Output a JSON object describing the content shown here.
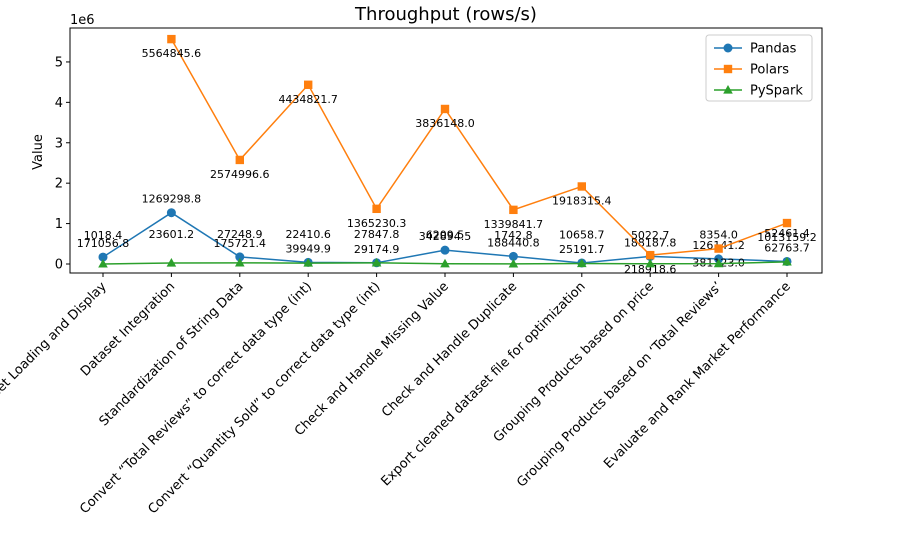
{
  "chart_data": {
    "type": "line",
    "title": "Throughput (rows/s)",
    "ylabel": "Value",
    "y_offset_label": "1e6",
    "categories": [
      "Dataset Loading and Display",
      "Dataset Integration",
      "Standardization of String Data",
      "Convert “Total Reviews” to correct data type (int)",
      "Convert “Quantity Sold” to correct data type (int)",
      "Check and Handle Missing Value",
      "Check and Handle Duplicate",
      "Export cleaned dataset file for optimization",
      "Grouping Products based on price",
      "Grouping Products based on ‘Total Reviews’",
      "Evaluate and Rank Market Performance"
    ],
    "series": [
      {
        "name": "Pandas",
        "color": "#1f77b4",
        "marker": "circle",
        "values": [
          171056.8,
          1269298.8,
          175721.4,
          39949.9,
          29174.9,
          342894.5,
          188440.8,
          25191.7,
          188187.8,
          126141.2,
          62763.7
        ],
        "value_labels": [
          "171056.8",
          "1269298.8",
          "175721.4",
          "39949.9",
          "29174.9",
          "342894.5",
          "188440.8",
          "25191.7",
          "188187.8",
          "126141.2",
          "62763.7"
        ]
      },
      {
        "name": "Polars",
        "color": "#ff7f0e",
        "marker": "square",
        "values": [
          null,
          5564845.6,
          2574996.6,
          4434821.7,
          1365230.3,
          3836148.0,
          1339841.7,
          1918315.4,
          218918.6,
          381123.0,
          1013159.2
        ],
        "value_labels": [
          null,
          "5564845.6",
          "2574996.6",
          "4434821.7",
          "1365230.3",
          "3836148.0",
          "1339841.7",
          "1918315.4",
          "218918.6",
          "381123.0",
          "1013159.2"
        ]
      },
      {
        "name": "PySpark",
        "color": "#2ca02c",
        "marker": "triangle",
        "values": [
          1018.4,
          23601.2,
          27248.9,
          22410.6,
          27847.8,
          6209.5,
          1742.8,
          10658.7,
          5022.7,
          8354.0,
          52461.4
        ],
        "value_labels": [
          "1018.4",
          "23601.2",
          "27248.9",
          "22410.6",
          "27847.8",
          "6209.5",
          "1742.8",
          "10658.7",
          "5022.7",
          "8354.0",
          "52461.4"
        ]
      }
    ],
    "ylim": [
      -223000,
      5840000
    ],
    "yticks": [
      0,
      {
        "value": 1000000,
        "label": "1"
      },
      {
        "value": 2000000,
        "label": "2"
      },
      {
        "value": 3000000,
        "label": "3"
      },
      {
        "value": 4000000,
        "label": "4"
      },
      {
        "value": 5000000,
        "label": "5"
      }
    ],
    "legend": "upper right"
  }
}
